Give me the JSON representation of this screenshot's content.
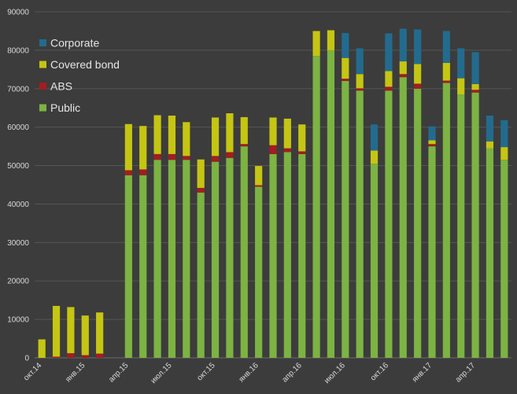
{
  "chart_data": {
    "type": "bar",
    "stacked": true,
    "ylim": [
      0,
      90000
    ],
    "yticks": [
      0,
      10000,
      20000,
      30000,
      40000,
      50000,
      60000,
      70000,
      80000,
      90000
    ],
    "grid": true,
    "legend_position": "top-left",
    "background": "#3c3c3c",
    "categories": [
      "окт.14",
      "ноя.14",
      "дек.14",
      "янв.15",
      "фев.15",
      "мар.15",
      "апр.15",
      "май.15",
      "июн.15",
      "июл.15",
      "авг.15",
      "сен.15",
      "окт.15",
      "ноя.15",
      "дек.15",
      "янв.16",
      "фев.16",
      "мар.16",
      "апр.16",
      "май.16",
      "июн.16",
      "июл.16",
      "авг.16",
      "сен.16",
      "окт.16",
      "ноя.16",
      "дек.16",
      "янв.17",
      "фев.17",
      "мар.17",
      "апр.17",
      "май.17",
      "июн.17"
    ],
    "x_tick_labels": [
      {
        "index": 0,
        "label": "окт.14"
      },
      {
        "index": 3,
        "label": "янв.15"
      },
      {
        "index": 6,
        "label": "апр.15"
      },
      {
        "index": 9,
        "label": "июл.15"
      },
      {
        "index": 12,
        "label": "окт.15"
      },
      {
        "index": 15,
        "label": "янв.16"
      },
      {
        "index": 18,
        "label": "апр.16"
      },
      {
        "index": 21,
        "label": "июл.16"
      },
      {
        "index": 24,
        "label": "окт.16"
      },
      {
        "index": 27,
        "label": "янв.17"
      },
      {
        "index": 30,
        "label": "апр.17"
      }
    ],
    "series": [
      {
        "name": "Public",
        "color": "#7cb342",
        "values": [
          0,
          0,
          0,
          0,
          0,
          0,
          47500,
          47500,
          51500,
          51500,
          51500,
          43000,
          51000,
          52000,
          55000,
          44500,
          53000,
          53500,
          53000,
          78500,
          80000,
          72000,
          69500,
          50500,
          69500,
          73000,
          70000,
          55000,
          71500,
          68500,
          69000,
          54500,
          51500
        ]
      },
      {
        "name": "ABS",
        "color": "#a11d21",
        "values": [
          0,
          300,
          1200,
          700,
          1100,
          0,
          1300,
          1500,
          1500,
          1500,
          1000,
          1200,
          1500,
          1500,
          600,
          400,
          2300,
          1000,
          700,
          0,
          0,
          600,
          600,
          0,
          1000,
          800,
          1300,
          600,
          600,
          0,
          700,
          0,
          0
        ]
      },
      {
        "name": "Covered bond",
        "color": "#c5c514",
        "values": [
          4800,
          13200,
          12000,
          10300,
          10700,
          0,
          12000,
          11300,
          10100,
          10000,
          8800,
          7400,
          10000,
          10100,
          7000,
          5000,
          7200,
          7700,
          7000,
          6500,
          5200,
          5400,
          3700,
          3400,
          4100,
          3300,
          5100,
          1000,
          4600,
          4200,
          1500,
          1800,
          3300
        ]
      },
      {
        "name": "Corporate",
        "color": "#236b8e",
        "values": [
          0,
          0,
          0,
          0,
          0,
          0,
          0,
          0,
          0,
          0,
          0,
          0,
          0,
          0,
          0,
          0,
          0,
          0,
          0,
          0,
          0,
          6500,
          6700,
          6800,
          9800,
          8500,
          9000,
          3600,
          8300,
          7800,
          8300,
          6700,
          7000
        ]
      }
    ]
  }
}
